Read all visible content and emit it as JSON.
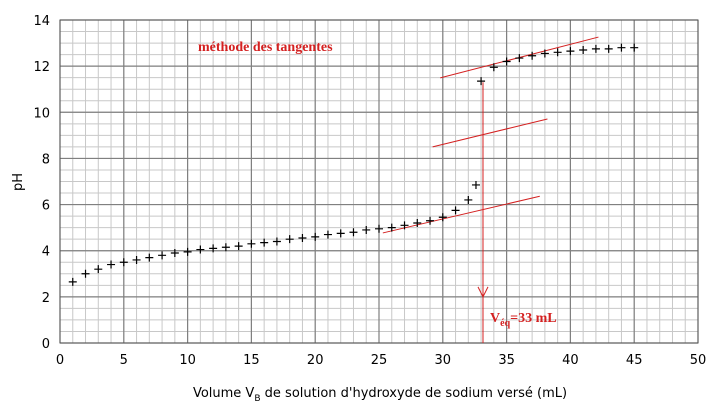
{
  "chart_data": {
    "type": "scatter",
    "ylabel": "pH",
    "xlabel": {
      "before": "Volume V",
      "sub": "B",
      "after": " de solution d'hydroxyde de sodium versé (mL)"
    },
    "x": [
      1,
      2,
      3,
      4,
      5,
      6,
      7,
      8,
      9,
      10,
      11,
      12,
      13,
      14,
      15,
      16,
      17,
      18,
      19,
      20,
      21,
      22,
      23,
      24,
      25,
      26,
      27,
      28,
      29,
      30,
      31,
      32,
      32.6,
      33,
      34,
      35,
      36,
      37,
      38,
      39,
      40,
      41,
      42,
      43,
      44,
      45
    ],
    "values": [
      2.65,
      3.0,
      3.2,
      3.4,
      3.5,
      3.6,
      3.7,
      3.8,
      3.9,
      3.95,
      4.05,
      4.1,
      4.15,
      4.2,
      4.3,
      4.35,
      4.4,
      4.5,
      4.55,
      4.6,
      4.7,
      4.75,
      4.8,
      4.9,
      4.95,
      5.0,
      5.1,
      5.2,
      5.3,
      5.45,
      5.75,
      6.2,
      6.85,
      11.35,
      11.95,
      12.2,
      12.35,
      12.45,
      12.55,
      12.6,
      12.65,
      12.7,
      12.75,
      12.75,
      12.8,
      12.8
    ],
    "color": "#000000",
    "xlim": [
      0,
      50
    ],
    "xticks": [
      0,
      5,
      10,
      15,
      20,
      25,
      30,
      35,
      40,
      45,
      50
    ],
    "ylim": [
      0,
      14
    ],
    "yticks": [
      0,
      2,
      4,
      6,
      8,
      10,
      12,
      14
    ],
    "grid": true,
    "minor_grid": {
      "x": 1,
      "y": 0.5
    },
    "annotation_color": "#d42020",
    "method_label": "méthode des tangentes",
    "equivalence": {
      "text": "V",
      "sub": "éq",
      "rest": "=33 mL",
      "x": 33.15,
      "y": [
        11.3,
        0
      ],
      "arrow_y": 2
    },
    "tangents": [
      {
        "x": [
          25.3,
          37.6
        ],
        "y": [
          4.77,
          6.36
        ]
      },
      {
        "x": [
          29.2,
          38.2
        ],
        "y": [
          8.5,
          9.71
        ]
      },
      {
        "x": [
          29.8,
          42.2
        ],
        "y": [
          11.49,
          13.26
        ]
      }
    ]
  }
}
